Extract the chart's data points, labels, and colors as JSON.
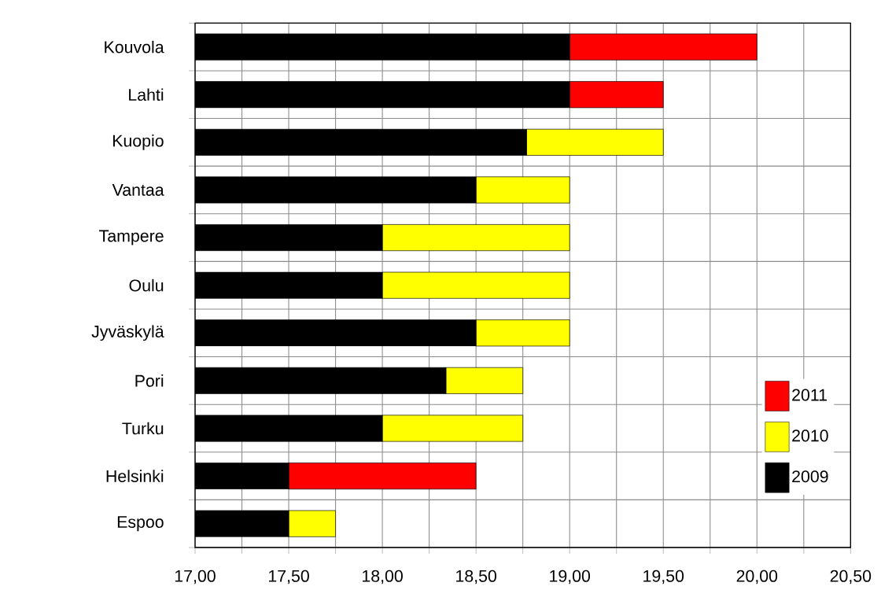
{
  "chart_data": {
    "type": "bar",
    "orientation": "horizontal",
    "stacked": true,
    "categories": [
      "Kouvola",
      "Lahti",
      "Kuopio",
      "Vantaa",
      "Tampere",
      "Oulu",
      "Jyväskylä",
      "Pori",
      "Turku",
      "Helsinki",
      "Espoo"
    ],
    "series": [
      {
        "name": "2009",
        "color": "#000000",
        "values": [
          19.0,
          19.0,
          18.77,
          18.5,
          18.0,
          18.0,
          18.5,
          18.34,
          18.0,
          17.5,
          17.5
        ]
      },
      {
        "name": "2010",
        "color": "#ffff00",
        "base": [
          null,
          null,
          18.77,
          18.5,
          18.0,
          18.0,
          18.5,
          18.34,
          18.0,
          null,
          17.5
        ],
        "values": [
          null,
          null,
          0.73,
          0.5,
          1.0,
          1.0,
          0.5,
          0.41,
          0.75,
          null,
          0.25
        ]
      },
      {
        "name": "2011",
        "color": "#ff0000",
        "base": [
          19.0,
          19.0,
          null,
          null,
          null,
          null,
          null,
          null,
          null,
          17.5,
          null
        ],
        "values": [
          1.0,
          0.5,
          null,
          null,
          null,
          null,
          null,
          null,
          null,
          1.0,
          null
        ]
      }
    ],
    "xlim": [
      17,
      20.5
    ],
    "xticks": [
      {
        "value": 17,
        "label": "17,00"
      },
      {
        "value": 17.25,
        "label": null
      },
      {
        "value": 17.5,
        "label": "17,50"
      },
      {
        "value": 17.75,
        "label": null
      },
      {
        "value": 18,
        "label": "18,00"
      },
      {
        "value": 18.25,
        "label": null
      },
      {
        "value": 18.5,
        "label": "18,50"
      },
      {
        "value": 18.75,
        "label": null
      },
      {
        "value": 19,
        "label": "19,00"
      },
      {
        "value": 19.25,
        "label": null
      },
      {
        "value": 19.5,
        "label": "19,50"
      },
      {
        "value": 19.75,
        "label": null
      },
      {
        "value": 20,
        "label": "20,00"
      },
      {
        "value": 20.25,
        "label": null
      },
      {
        "value": 20.5,
        "label": "20,50"
      }
    ],
    "grid": true,
    "legend": "right"
  }
}
